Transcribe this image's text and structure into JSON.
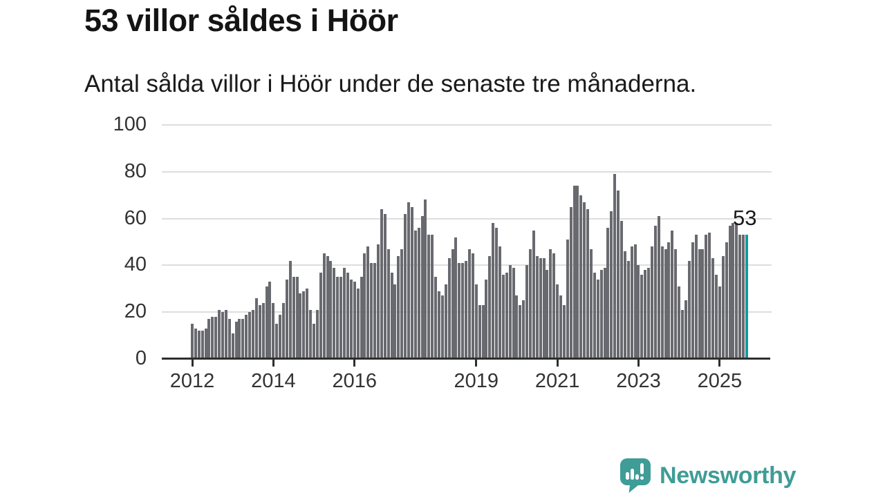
{
  "header": {
    "title": "53 villor såldes i Höör",
    "subtitle": "Antal sålda villor i Höör under de senaste tre månaderna."
  },
  "chart_data": {
    "type": "bar",
    "title": "53 villor såldes i Höör",
    "subtitle": "Antal sålda villor i Höör under de senaste tre månaderna.",
    "x_frequency": "monthly",
    "x_start": "2012-01",
    "values": [
      15,
      13,
      12,
      12,
      13,
      17,
      18,
      18,
      21,
      20,
      21,
      17,
      11,
      16,
      17,
      17,
      19,
      20,
      21,
      26,
      23,
      24,
      31,
      33,
      24,
      15,
      19,
      24,
      34,
      42,
      35,
      35,
      28,
      29,
      30,
      21,
      15,
      21,
      37,
      45,
      44,
      42,
      39,
      35,
      35,
      39,
      37,
      34,
      33,
      30,
      35,
      45,
      48,
      41,
      41,
      49,
      64,
      62,
      47,
      37,
      32,
      44,
      47,
      62,
      67,
      65,
      55,
      56,
      61,
      68,
      53,
      53,
      35,
      29,
      27,
      32,
      43,
      47,
      52,
      41,
      41,
      42,
      47,
      45,
      32,
      23,
      23,
      34,
      44,
      58,
      56,
      48,
      36,
      37,
      40,
      39,
      27,
      23,
      25,
      40,
      47,
      55,
      44,
      43,
      43,
      38,
      47,
      45,
      32,
      27,
      23,
      51,
      65,
      74,
      74,
      70,
      67,
      64,
      47,
      37,
      34,
      38,
      39,
      56,
      63,
      79,
      72,
      59,
      46,
      42,
      48,
      49,
      40,
      36,
      38,
      39,
      48,
      57,
      61,
      48,
      47,
      50,
      55,
      47,
      31,
      21,
      25,
      42,
      50,
      53,
      47,
      47,
      53,
      54,
      43,
      36,
      31,
      44,
      50,
      57,
      58,
      58,
      53,
      53,
      53
    ],
    "highlight_last_value": 53,
    "last_value_label": "53",
    "ylim": [
      0,
      100
    ],
    "yticks": [
      0,
      20,
      40,
      60,
      80,
      100
    ],
    "xticks": [
      {
        "label": "2012",
        "month_index": 0
      },
      {
        "label": "2014",
        "month_index": 24
      },
      {
        "label": "2016",
        "month_index": 48
      },
      {
        "label": "2019",
        "month_index": 84
      },
      {
        "label": "2021",
        "month_index": 108
      },
      {
        "label": "2023",
        "month_index": 132
      },
      {
        "label": "2025",
        "month_index": 156
      }
    ],
    "grid": "horizontal",
    "legend": "none",
    "bar_color": "#696a6f",
    "highlight_color": "#0d9ea1",
    "gridline_color": "#dddddd",
    "axis_color": "#2e2e2e"
  },
  "footer": {
    "brand": "Newsworthy",
    "brand_color": "#3f9c96",
    "logo_icon": "bar-chart-speech-bubble-icon"
  }
}
